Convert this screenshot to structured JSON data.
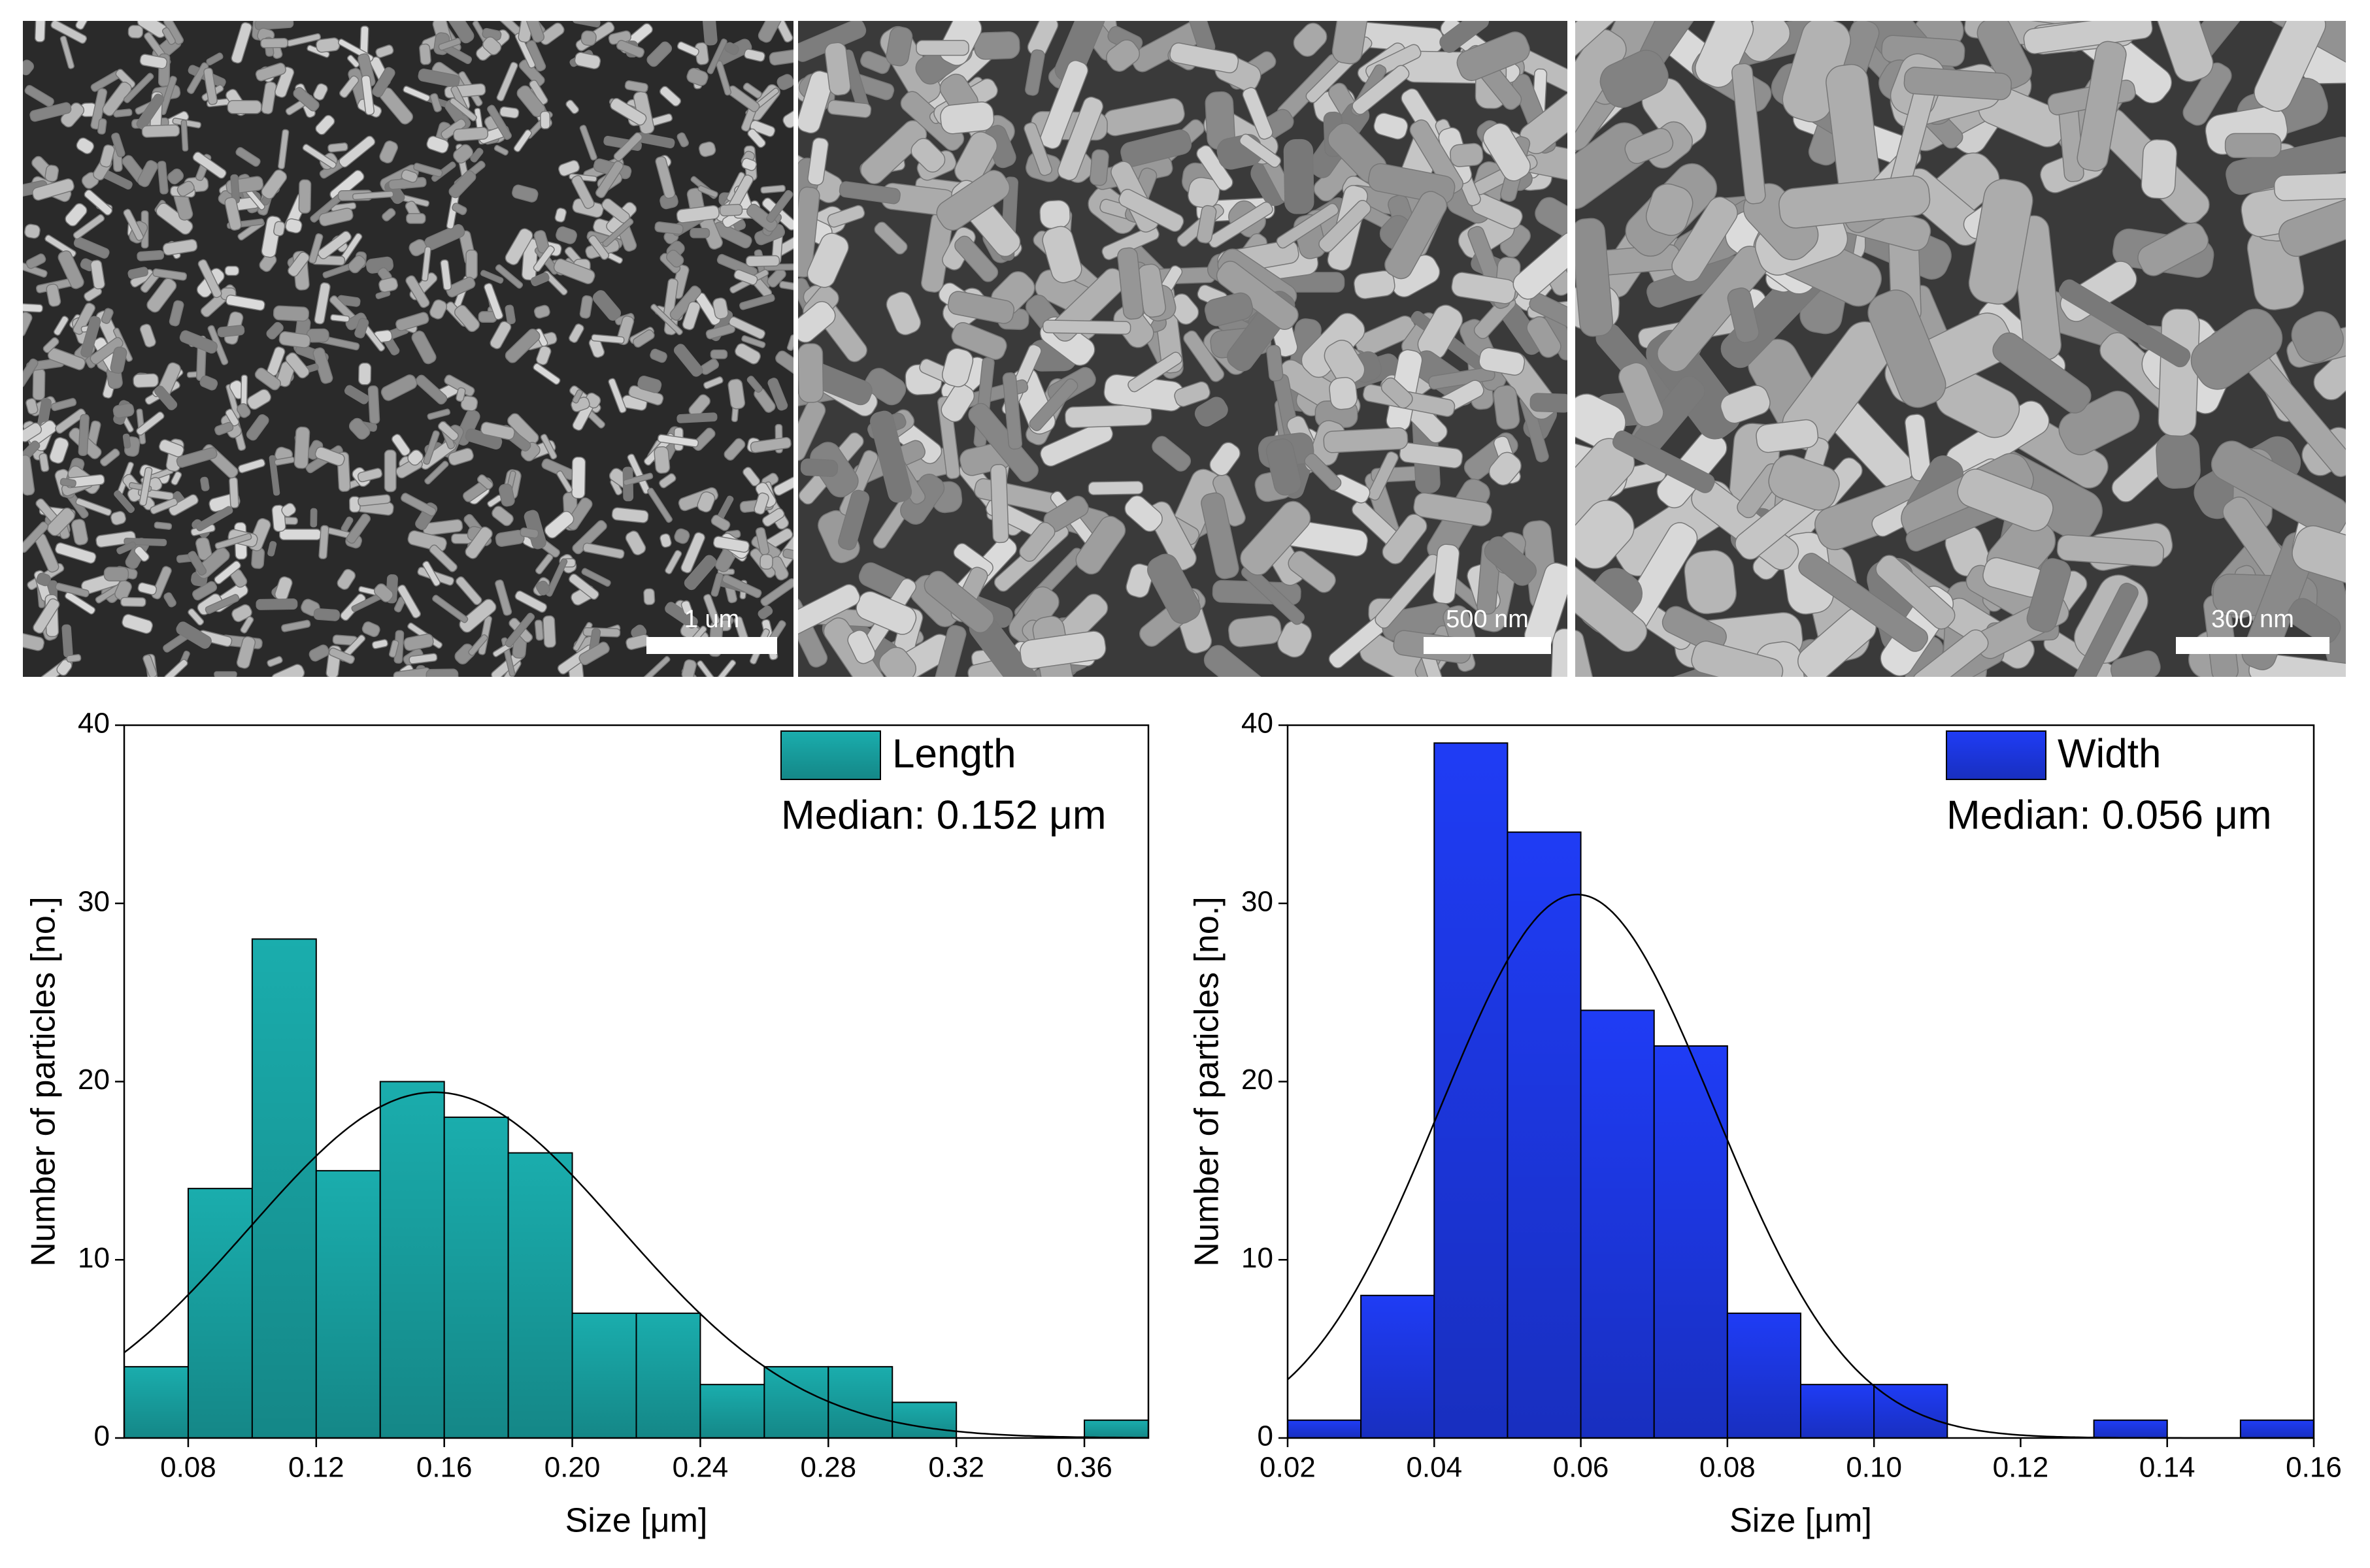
{
  "images": [
    {
      "scale_label": "1 um"
    },
    {
      "scale_label": "500 nm"
    },
    {
      "scale_label": "300 nm"
    }
  ],
  "chart_data": [
    {
      "type": "histogram",
      "xlabel": "Size [μm]",
      "ylabel": "Number of particles [no.]",
      "annotation": "Median: 0.152 μm",
      "bins": [
        0.06,
        0.08,
        0.1,
        0.12,
        0.14,
        0.16,
        0.18,
        0.2,
        0.22,
        0.24,
        0.26,
        0.28,
        0.3,
        0.32,
        0.34,
        0.36,
        0.38
      ],
      "series": [
        {
          "name": "Length",
          "color": "#1aadad",
          "values": [
            4,
            14,
            28,
            15,
            20,
            18,
            16,
            7,
            7,
            3,
            4,
            4,
            2,
            0,
            0,
            1
          ]
        }
      ],
      "fit": {
        "peak": 19.4,
        "mean": 0.157,
        "sd": 0.058
      },
      "xlim": [
        0.06,
        0.38
      ],
      "ylim": [
        0,
        40
      ],
      "xticks": [
        0.08,
        0.12,
        0.16,
        {
          "value": 0.2,
          "label": "0.20"
        },
        0.24,
        0.28,
        0.32,
        0.36
      ],
      "yticks": [
        0,
        10,
        20,
        30,
        40
      ]
    },
    {
      "type": "histogram",
      "xlabel": "Size [μm]",
      "ylabel": "Number of particles [no.]",
      "annotation": "Median: 0.056 μm",
      "bins": [
        0.02,
        0.03,
        0.04,
        0.05,
        0.06,
        0.07,
        0.08,
        0.09,
        0.1,
        0.11,
        0.12,
        0.13,
        0.14,
        0.15,
        0.16
      ],
      "series": [
        {
          "name": "Width",
          "color": "#1f3cf5",
          "values": [
            1,
            8,
            39,
            34,
            24,
            22,
            7,
            3,
            3,
            0,
            0,
            1,
            0,
            1
          ]
        }
      ],
      "fit": {
        "peak": 30.5,
        "mean": 0.0595,
        "sd": 0.0187
      },
      "xlim": [
        0.02,
        0.16
      ],
      "ylim": [
        0,
        40
      ],
      "xticks": [
        0.02,
        0.04,
        0.06,
        0.08,
        {
          "value": 0.1,
          "label": "0.10"
        },
        0.12,
        0.14,
        0.16
      ],
      "yticks": [
        0,
        10,
        20,
        30,
        40
      ]
    }
  ]
}
